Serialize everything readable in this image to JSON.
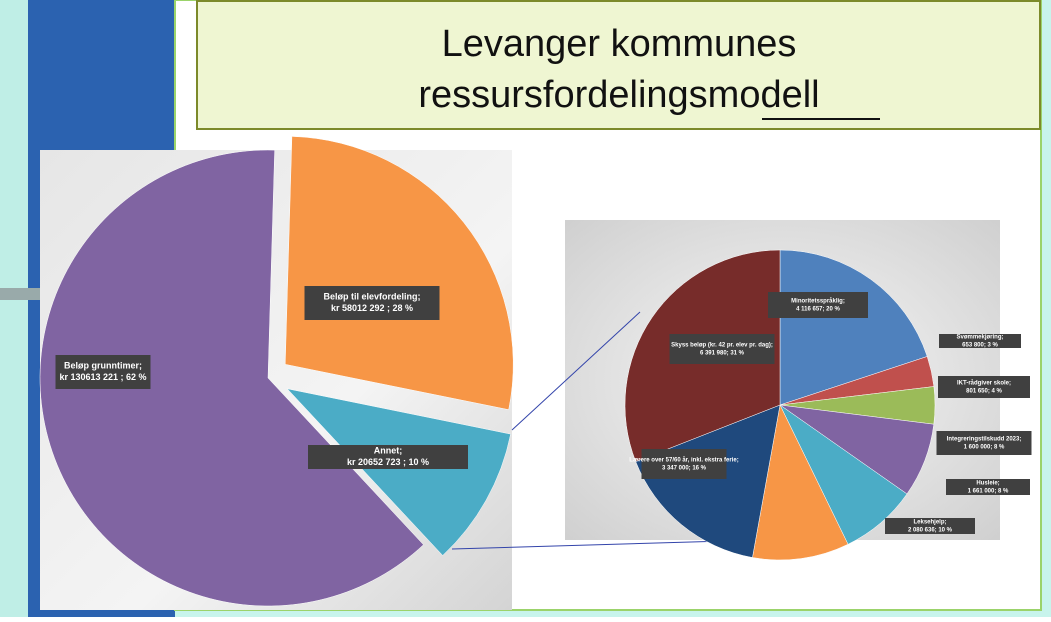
{
  "slide": {
    "title_lines": [
      "Levanger kommunes",
      "ressursfordelingsmodell"
    ]
  },
  "chart_data": [
    {
      "type": "pie",
      "categories": [
        "Beløp grunntimer;",
        "Beløp til elevfordeling;",
        "Annet;"
      ],
      "values": [
        130613221,
        58012292,
        20652723
      ],
      "value_labels": [
        "kr 130613 221 ; 62 %",
        "kr 58012 292 ; 28 %",
        "kr 20652 723 ; 10 %"
      ],
      "colors": [
        "#8064a2",
        "#f79646",
        "#4bacc6"
      ]
    },
    {
      "type": "pie",
      "categories": [
        "Minoritetsspråklig;",
        "Svømmekjøring;",
        "IKT-rådgiver skole;",
        "Integreringstilskudd 2023;",
        "Husleie;",
        "Leksehjelp;",
        "Lærere over 57/60 år, inkl. ekstra ferie;",
        "Skyss beløp (kr. 42 pr. elev pr. dag);"
      ],
      "values": [
        4116657,
        653800,
        801650,
        1600000,
        1661000,
        2080636,
        3347000,
        6391980
      ],
      "value_labels": [
        "4 116 657; 20 %",
        "653 800; 3 %",
        "801 650; 4 %",
        "1 600 000; 8 %",
        "1 661 000; 8 %",
        "2 080 636; 10 %",
        "3 347 000; 16 %",
        "6 391 980; 31 %"
      ],
      "colors": [
        "#4f81bd",
        "#c0504d",
        "#9bbb59",
        "#8064a2",
        "#4bacc6",
        "#f79646",
        "#1f497d",
        "#772c2a"
      ]
    }
  ]
}
